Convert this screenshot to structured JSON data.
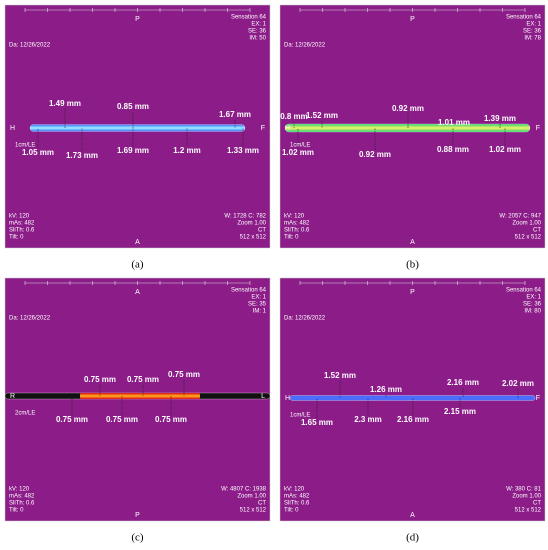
{
  "figure": {
    "panels": [
      {
        "caption": "(a)",
        "date": "Da: 12/26/2022",
        "top": "P",
        "bottom": "A",
        "left": "H",
        "right": "F",
        "scale": "1cm/LE",
        "top_right": [
          "Sensation 64",
          "EX: 1",
          "SE: 36",
          "IM: 50"
        ],
        "bottom_left": [
          "kV: 120",
          "mAs: 482",
          "SliTh: 0.6",
          "Tilt: 0"
        ],
        "bottom_right": [
          "W: 1728 C: 782",
          "Zoom 1.00",
          "CT",
          "512 x 512"
        ],
        "measurements": [
          "1.49 mm",
          "0.85 mm",
          "1.67 mm",
          "1.05 mm",
          "1.73 mm",
          "1.69 mm",
          "1.2 mm",
          "1.33 mm"
        ]
      },
      {
        "caption": "(b)",
        "date": "Da: 12/26/2022",
        "top": "P",
        "bottom": "A",
        "left": "H",
        "right": "F",
        "scale": "1cm/LE",
        "top_right": [
          "Sensation 64",
          "EX: 1",
          "SE: 36",
          "IM: 78"
        ],
        "bottom_left": [
          "kV: 120",
          "mAs: 482",
          "SliTh: 0.6",
          "Tilt: 0"
        ],
        "bottom_right": [
          "W: 2057 C: 947",
          "Zoom 1.00",
          "CT",
          "512 x 512"
        ],
        "measurements": [
          "0.8 mm",
          "1.52 mm",
          "0.92 mm",
          "1.01 mm",
          "1.39 mm",
          "1.02 mm",
          "0.92 mm",
          "0.88 mm",
          "1.02 mm"
        ]
      },
      {
        "caption": "(c)",
        "date": "Da: 12/26/2022",
        "top": "A",
        "bottom": "P",
        "left": "R",
        "right": "L",
        "scale": "2cm/LE",
        "top_right": [
          "Sensation 64",
          "EX: 1",
          "SE: 35",
          "IM: 1"
        ],
        "bottom_left": [
          "kV: 120",
          "mAs: 482",
          "SliTh: 0.6",
          "Tilt: 0"
        ],
        "bottom_right": [
          "W: 4807 C: 1938",
          "Zoom 1.00",
          "CT",
          "512 x 512"
        ],
        "measurements": [
          "0.75 mm",
          "0.75 mm",
          "0.75 mm",
          "0.75 mm",
          "0.75 mm",
          "0.75 mm"
        ]
      },
      {
        "caption": "(d)",
        "date": "Da: 12/26/2022",
        "top": "P",
        "bottom": "A",
        "left": "H",
        "right": "F",
        "scale": "1cm/LE",
        "top_right": [
          "Sensation 64",
          "EX: 1",
          "SE: 36",
          "IM: 80"
        ],
        "bottom_left": [
          "kV: 120",
          "mAs: 482",
          "SliTh: 0.6",
          "Tilt: 0"
        ],
        "bottom_right": [
          "W: 380 C: 81",
          "Zoom 1.00",
          "CT",
          "512 x 512"
        ],
        "measurements": [
          "1.52 mm",
          "1.26 mm",
          "2.16 mm",
          "2.02 mm",
          "1.65 mm",
          "2.3 mm",
          "2.16 mm",
          "2.15 mm"
        ]
      }
    ]
  }
}
